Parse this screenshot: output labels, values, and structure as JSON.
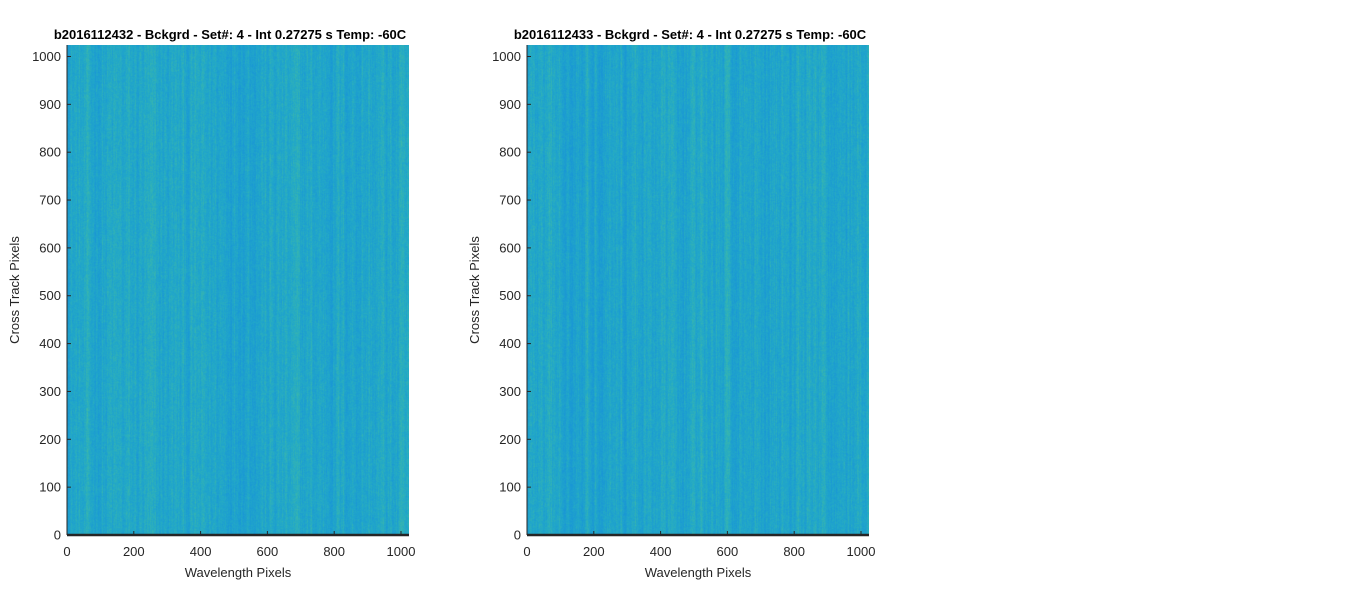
{
  "chart_data": [
    {
      "type": "heatmap",
      "title": "b2016112432 - Bckgrd - Set#: 4 - Int 0.27275 s Temp: -60C",
      "xlabel": "Wavelength Pixels",
      "ylabel": "Cross Track Pixels",
      "xlim": [
        0,
        1024
      ],
      "ylim": [
        0,
        1024
      ],
      "xticks": [
        0,
        200,
        400,
        600,
        800,
        1000
      ],
      "yticks": [
        0,
        100,
        200,
        300,
        400,
        500,
        600,
        700,
        800,
        900,
        1000
      ],
      "colormap": "parula",
      "dominant_colors": [
        "#1996D6",
        "#22A8C8",
        "#3DB9A8",
        "#8CC56A"
      ],
      "grid": false,
      "legend": "none"
    },
    {
      "type": "heatmap",
      "title": "b2016112433 - Bckgrd - Set#: 4 - Int 0.27275 s Temp: -60C",
      "xlabel": "Wavelength Pixels",
      "ylabel": "Cross Track Pixels",
      "xlim": [
        0,
        1024
      ],
      "ylim": [
        0,
        1024
      ],
      "xticks": [
        0,
        200,
        400,
        600,
        800,
        1000
      ],
      "yticks": [
        0,
        100,
        200,
        300,
        400,
        500,
        600,
        700,
        800,
        900,
        1000
      ],
      "colormap": "parula",
      "dominant_colors": [
        "#1996D6",
        "#22A8C8",
        "#3DB9A8",
        "#8CC56A"
      ],
      "grid": false,
      "legend": "none"
    }
  ]
}
